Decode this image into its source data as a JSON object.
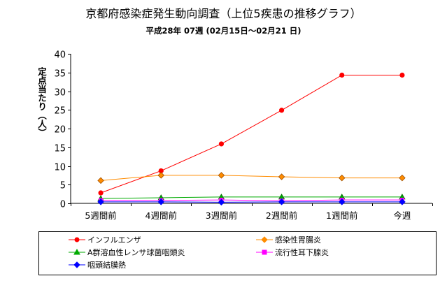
{
  "chart_data": {
    "type": "line",
    "title": "京都府感染症発生動向調査（上位5疾患の推移グラフ）",
    "subtitle": "平成28年 07週 (02月15日～02月21 日)",
    "xlabel": "",
    "ylabel": "定点当たり（人）",
    "categories": [
      "5週間前",
      "4週間前",
      "3週間前",
      "2週間前",
      "1週間前",
      "今週"
    ],
    "ylim": [
      0,
      40
    ],
    "yticks": [
      0,
      5,
      10,
      15,
      20,
      25,
      30,
      35,
      40
    ],
    "grid": false,
    "legend_position": "bottom",
    "series": [
      {
        "name": "インフルエンザ",
        "color": "#ff0000",
        "marker": "circle",
        "values": [
          2.8,
          8.7,
          15.9,
          24.9,
          34.3,
          34.3
        ]
      },
      {
        "name": "感染性胃腸炎",
        "color": "#ff8c00",
        "marker": "diamond",
        "values": [
          6.1,
          7.5,
          7.5,
          7.1,
          6.8,
          6.8
        ]
      },
      {
        "name": "A群溶血性レンサ球菌咽頭炎",
        "color": "#00aa00",
        "marker": "triangle",
        "values": [
          1.3,
          1.5,
          1.7,
          1.7,
          1.7,
          1.7
        ]
      },
      {
        "name": "流行性耳下腺炎",
        "color": "#ff00ff",
        "marker": "square",
        "values": [
          0.8,
          0.8,
          0.9,
          0.7,
          0.9,
          0.9
        ]
      },
      {
        "name": "咽頭結膜熱",
        "color": "#0000ff",
        "marker": "diamond",
        "values": [
          0.4,
          0.4,
          0.3,
          0.4,
          0.4,
          0.4
        ]
      }
    ]
  }
}
